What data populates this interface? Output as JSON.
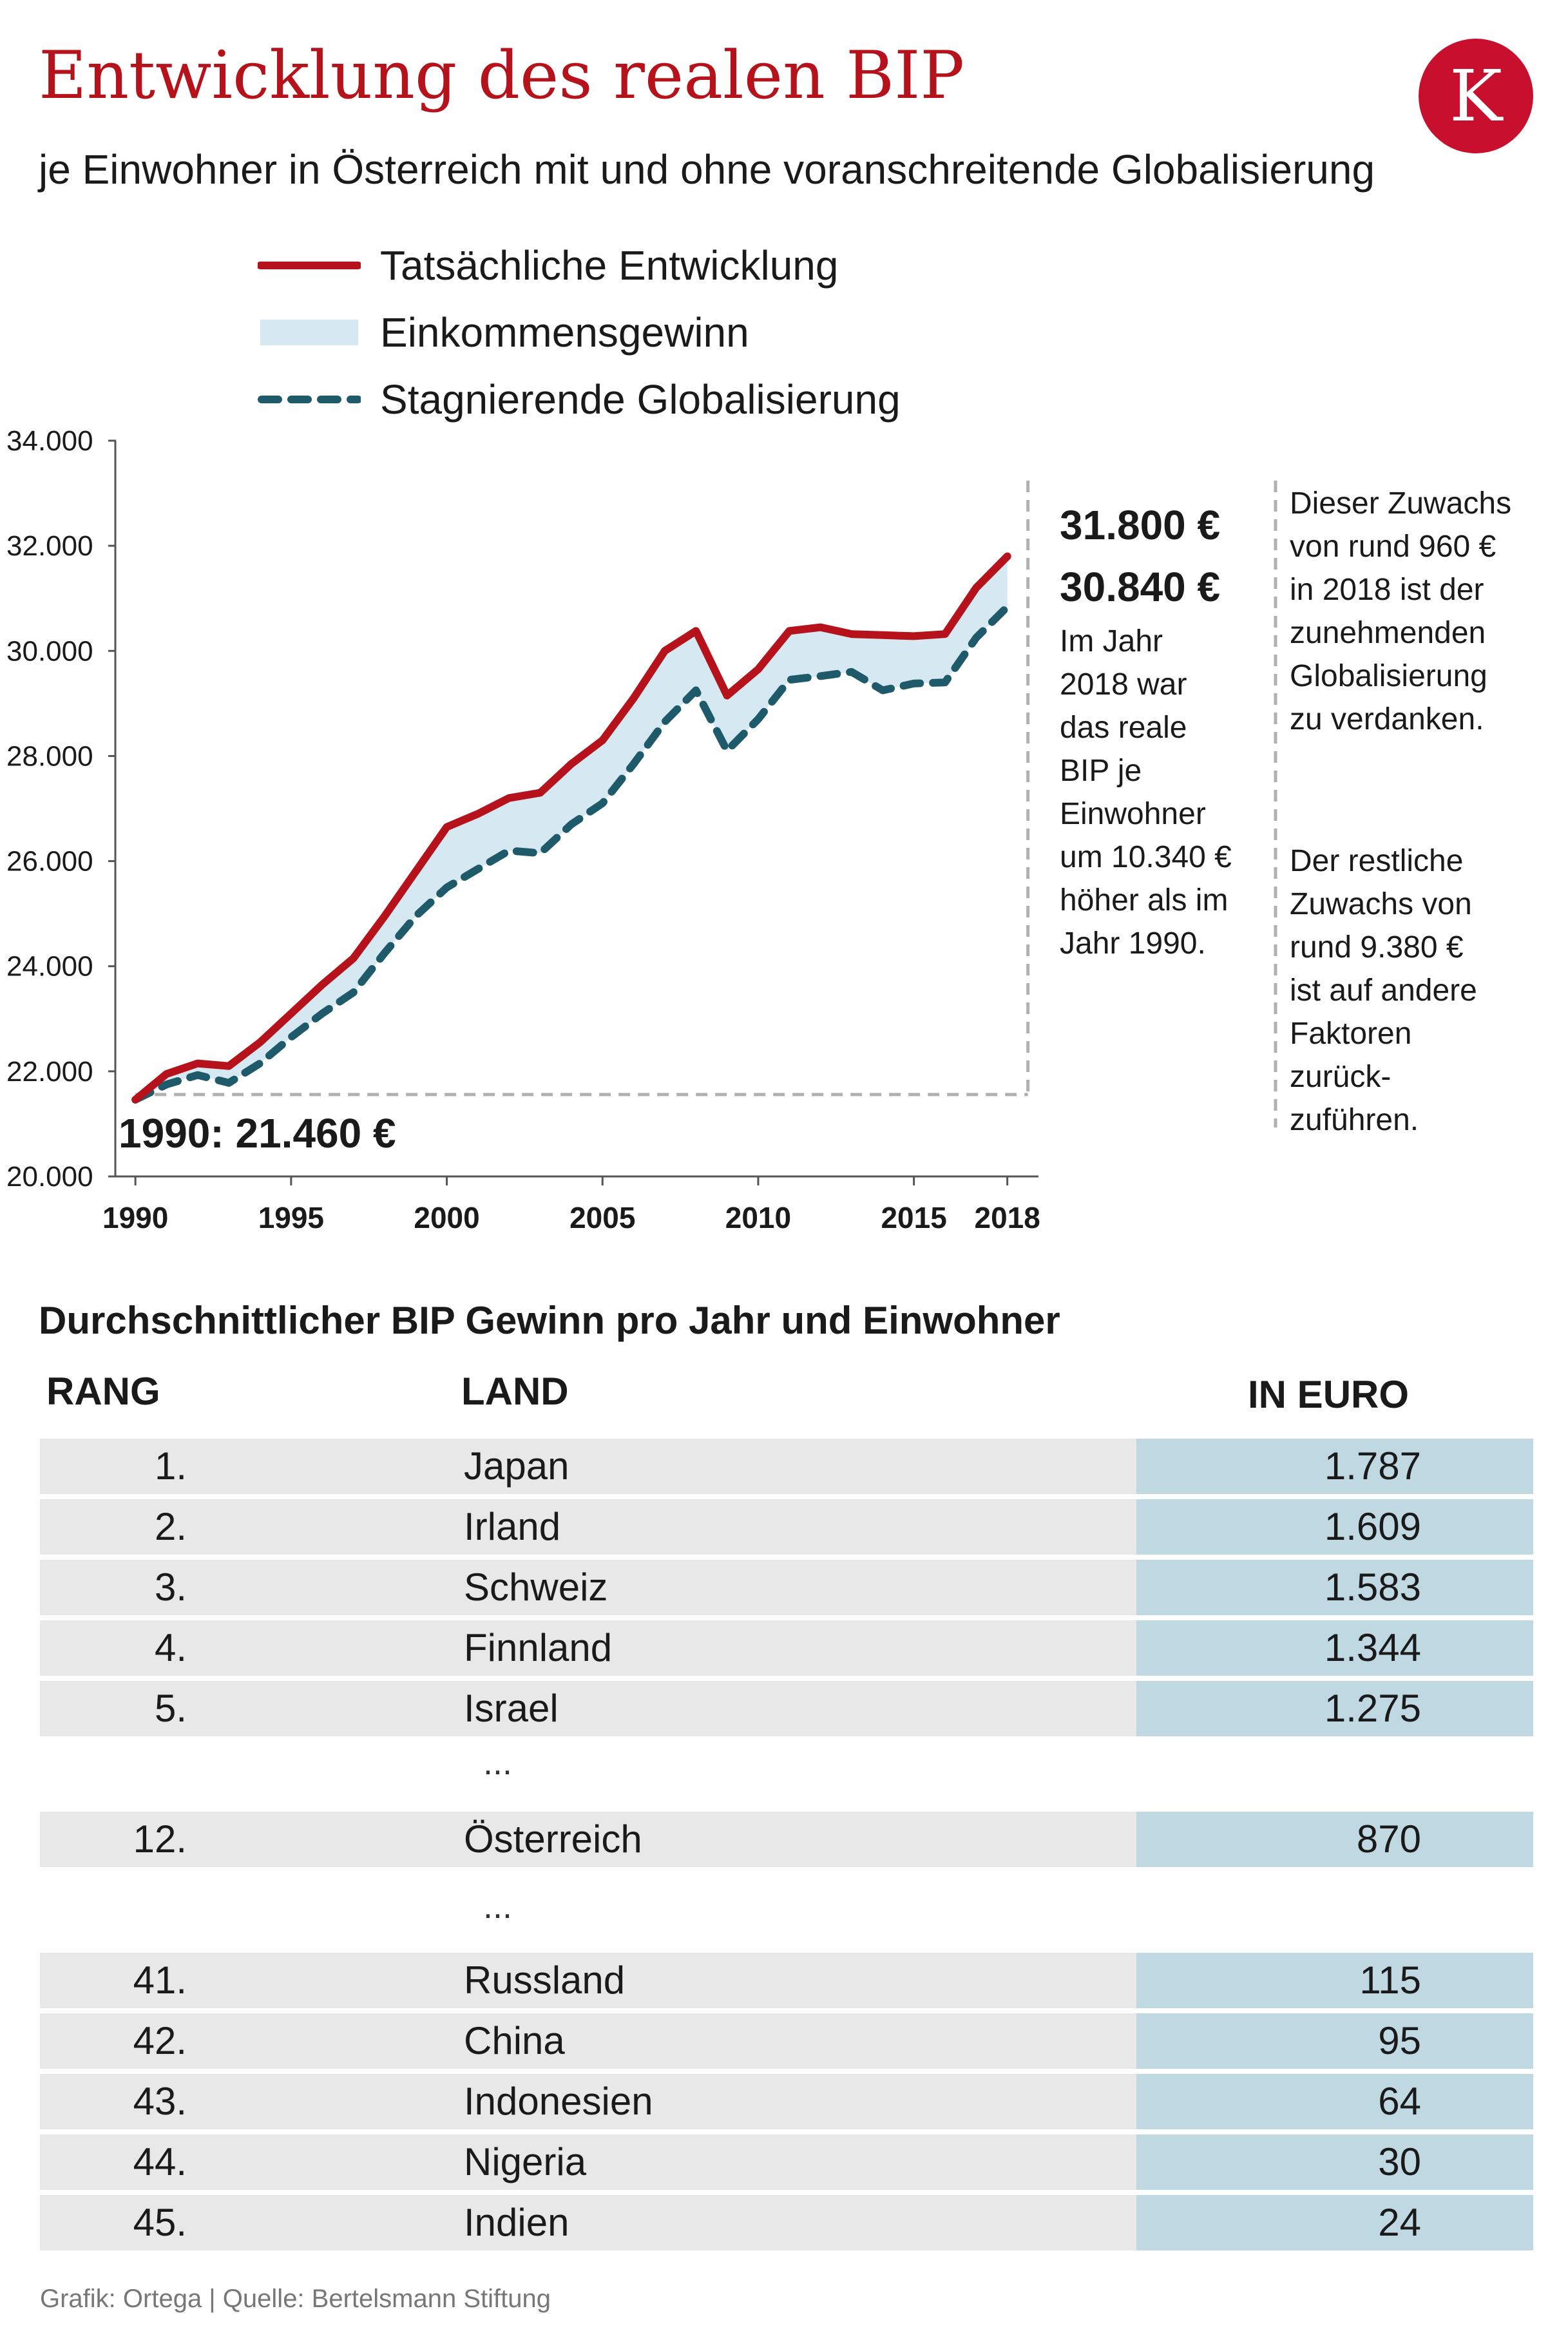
{
  "header": {
    "title": "Entwicklung des realen BIP",
    "subtitle": "je Einwohner in Österreich mit und ohne voranschreitende Globalisierung",
    "logo_letter": "K"
  },
  "legend": [
    {
      "label": "Tatsächliche Entwicklung",
      "style": "solid-line",
      "color": "#b5121b"
    },
    {
      "label": "Einkommensgewinn",
      "style": "area",
      "color": "#d6e8f2"
    },
    {
      "label": "Stagnierende Globalisierung",
      "style": "dashed-line",
      "color": "#1e5a6a"
    }
  ],
  "chart_data": {
    "type": "line",
    "title": "Entwicklung des realen BIP",
    "subtitle": "je Einwohner in Österreich mit und ohne voranschreitende Globalisierung",
    "x_ticks": [
      "1990",
      "1995",
      "2000",
      "2005",
      "2010",
      "2015",
      "2018"
    ],
    "y_ticks": [
      "20.000",
      "22.000",
      "24.000",
      "26.000",
      "28.000",
      "30.000",
      "32.000",
      "34.000"
    ],
    "xlim": [
      1989.5,
      2019
    ],
    "ylim": [
      20000,
      34000
    ],
    "x": [
      1990,
      1991,
      1992,
      1993,
      1994,
      1995,
      1996,
      1997,
      1998,
      1999,
      2000,
      2001,
      2002,
      2003,
      2004,
      2005,
      2006,
      2007,
      2008,
      2009,
      2010,
      2011,
      2012,
      2013,
      2014,
      2015,
      2016,
      2017,
      2018
    ],
    "series": [
      {
        "name": "Tatsächliche Entwicklung",
        "color": "#b5121b",
        "style": "solid",
        "values": [
          21460,
          21950,
          22150,
          22100,
          22550,
          23100,
          23650,
          24150,
          24950,
          25800,
          26650,
          26900,
          27200,
          27300,
          27850,
          28300,
          29100,
          30000,
          30380,
          29150,
          29650,
          30380,
          30450,
          30320,
          30300,
          30280,
          30320,
          31200,
          31800
        ]
      },
      {
        "name": "Stagnierende Globalisierung",
        "color": "#1e5a6a",
        "style": "dashed",
        "values": [
          21460,
          21750,
          21930,
          21780,
          22150,
          22650,
          23100,
          23500,
          24250,
          24950,
          25500,
          25850,
          26200,
          26150,
          26700,
          27100,
          27850,
          28650,
          29250,
          28100,
          28700,
          29450,
          29520,
          29600,
          29250,
          29380,
          29400,
          30250,
          30840
        ]
      }
    ],
    "area_label": "Einkommensgewinn",
    "annotations": {
      "start": "1990: 21.460 €",
      "end_actual": "31.800 €",
      "end_stagnant": "30.840 €",
      "text_main": [
        "Im Jahr",
        "2018 war",
        "das reale",
        "BIP je",
        "Einwohner",
        "um 10.340 €",
        "höher als im",
        "Jahr 1990."
      ],
      "text_gain": [
        "Dieser Zuwachs",
        "von rund 960 €",
        "in 2018 ist der",
        "zunehmenden",
        "Globalisierung",
        "zu verdanken."
      ],
      "text_rest": [
        "Der restliche",
        "Zuwachs von",
        "rund 9.380 €",
        "ist auf andere",
        "Faktoren",
        "zurück-",
        "zuführen."
      ]
    },
    "grid": false
  },
  "table": {
    "title": "Durchschnittlicher BIP Gewinn pro Jahr und Einwohner",
    "headers": {
      "rank": "RANG",
      "land": "LAND",
      "euro": "IN EURO"
    },
    "group_top": [
      {
        "rank": "1.",
        "land": "Japan",
        "euro": "1.787"
      },
      {
        "rank": "2.",
        "land": "Irland",
        "euro": "1.609"
      },
      {
        "rank": "3.",
        "land": "Schweiz",
        "euro": "1.583"
      },
      {
        "rank": "4.",
        "land": "Finnland",
        "euro": "1.344"
      },
      {
        "rank": "5.",
        "land": "Israel",
        "euro": "1.275"
      }
    ],
    "ellipsis": "...",
    "austria": {
      "rank": "12.",
      "land": "Österreich",
      "euro": "870"
    },
    "group_bottom": [
      {
        "rank": "41.",
        "land": "Russland",
        "euro": "115"
      },
      {
        "rank": "42.",
        "land": "China",
        "euro": "95"
      },
      {
        "rank": "43.",
        "land": "Indonesien",
        "euro": "64"
      },
      {
        "rank": "44.",
        "land": "Nigeria",
        "euro": "30"
      },
      {
        "rank": "45.",
        "land": "Indien",
        "euro": "24"
      }
    ]
  },
  "footer": {
    "source": "Grafik: Ortega | Quelle: Bertelsmann Stiftung"
  }
}
